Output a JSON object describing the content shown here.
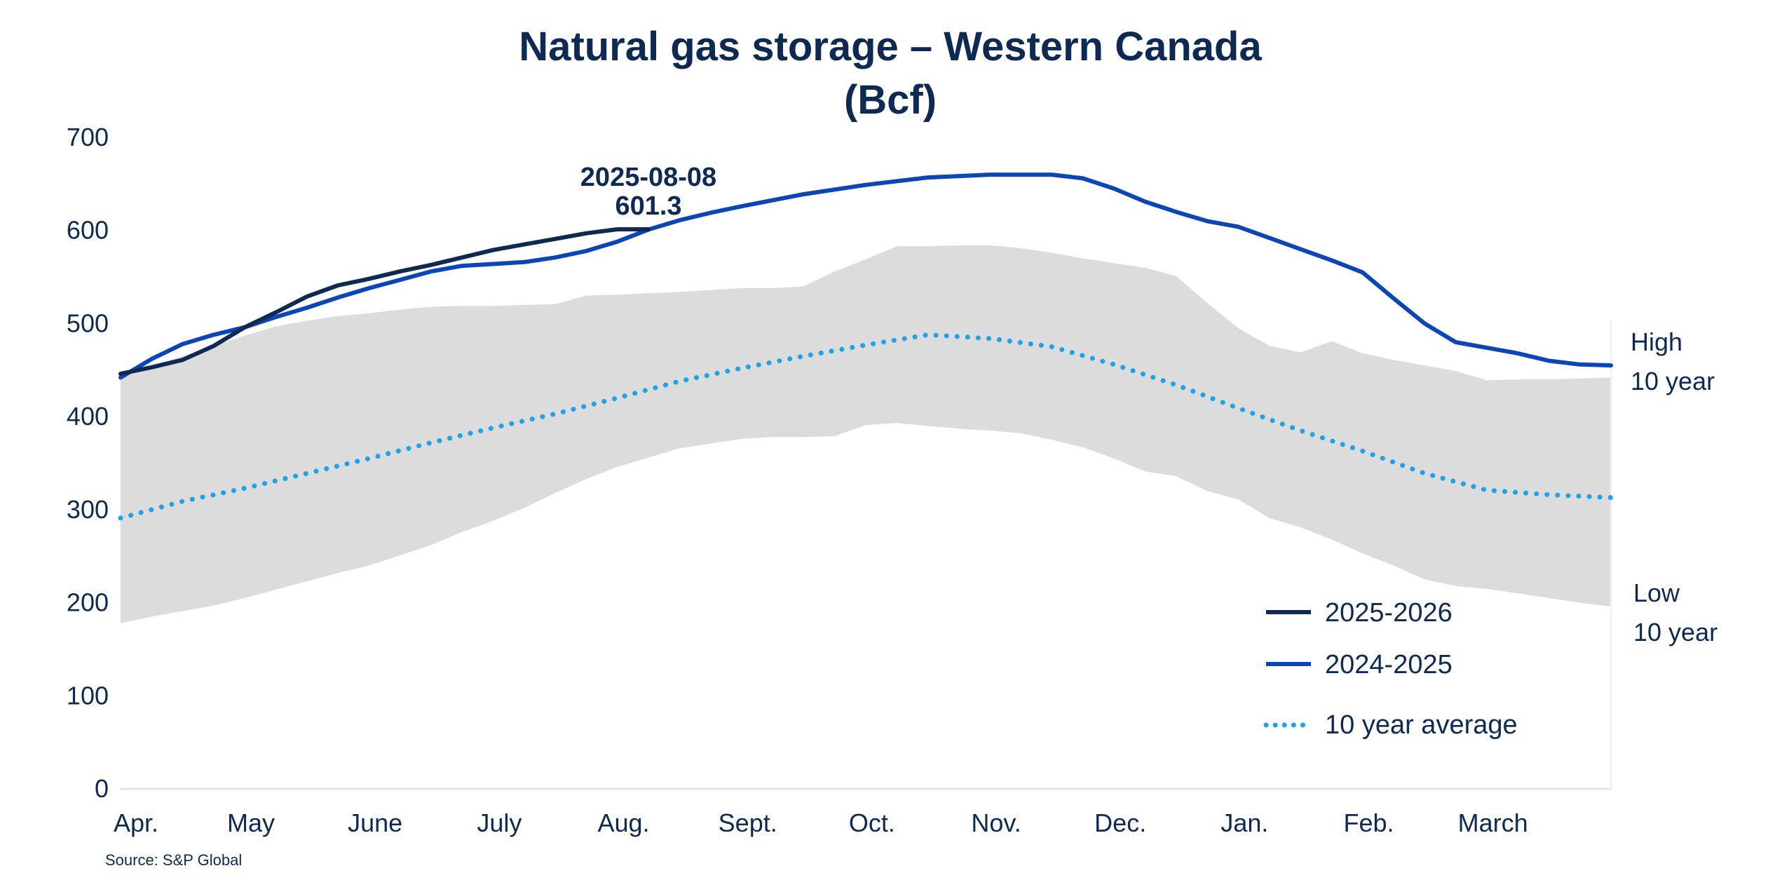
{
  "chart_data": {
    "type": "line",
    "title": "Natural gas storage – Western Canada",
    "subtitle": "(Bcf)",
    "ylim": [
      0,
      700
    ],
    "yticks": [
      0,
      100,
      200,
      300,
      400,
      500,
      600,
      700
    ],
    "xlim": [
      0,
      12
    ],
    "x_labels": [
      "Apr.",
      "May",
      "June",
      "July",
      "Aug.",
      "Sept.",
      "Oct.",
      "Nov.",
      "Dec.",
      "Jan.",
      "Feb.",
      "March"
    ],
    "grid": false,
    "legend_position": "bottom-right",
    "series": [
      {
        "name": "2025-2026",
        "color": "#0e2a52",
        "style": "solid",
        "x": [
          0,
          0.25,
          0.5,
          0.75,
          1.0,
          1.25,
          1.5,
          1.75,
          2.0,
          2.25,
          2.5,
          2.75,
          3.0,
          3.25,
          3.5,
          3.75,
          4.0,
          4.25
        ],
        "y": [
          446,
          453,
          461,
          476,
          496,
          512,
          529,
          541,
          548,
          556,
          563,
          571,
          579,
          585,
          591,
          597,
          601.3,
          601.3
        ]
      },
      {
        "name": "2024-2025",
        "color": "#0b45b8",
        "style": "solid",
        "x": [
          0,
          0.25,
          0.5,
          0.75,
          1.0,
          1.25,
          1.5,
          1.75,
          2.0,
          2.25,
          2.5,
          2.75,
          3.0,
          3.25,
          3.5,
          3.75,
          4.0,
          4.25,
          4.5,
          4.75,
          5.0,
          5.5,
          6.0,
          6.5,
          7.0,
          7.5,
          7.75,
          8.0,
          8.25,
          8.5,
          8.75,
          9.0,
          9.25,
          9.5,
          9.75,
          10.0,
          10.25,
          10.5,
          10.75,
          11.0,
          11.25,
          11.5,
          11.75,
          12.0
        ],
        "y": [
          442,
          462,
          478,
          488,
          496,
          507,
          517,
          528,
          538,
          547,
          556,
          562,
          564,
          566,
          571,
          578,
          588,
          601,
          611,
          619,
          626,
          639,
          649,
          657,
          660,
          660,
          656,
          645,
          631,
          620,
          610,
          604,
          592,
          580,
          568,
          555,
          527,
          500,
          480,
          474,
          468,
          460,
          456,
          455
        ]
      },
      {
        "name": "10 year average",
        "color": "#1ea3ea",
        "style": "dotted",
        "x": [
          0,
          0.5,
          1.0,
          1.5,
          2.0,
          2.5,
          3.0,
          3.5,
          4.0,
          4.5,
          5.0,
          5.5,
          6.0,
          6.5,
          7.0,
          7.5,
          8.0,
          8.5,
          9.0,
          9.5,
          10.0,
          10.5,
          11.0,
          11.5,
          12.0
        ],
        "y": [
          291,
          309,
          323,
          339,
          355,
          372,
          388,
          403,
          420,
          438,
          452,
          465,
          477,
          488,
          484,
          475,
          456,
          434,
          409,
          385,
          363,
          339,
          321,
          316,
          313
        ]
      }
    ],
    "band": {
      "name": "10 year range",
      "color": "#dcdcdc",
      "x": [
        0,
        0.25,
        0.5,
        0.75,
        1.0,
        1.25,
        1.5,
        1.75,
        2.0,
        2.25,
        2.5,
        2.75,
        3.0,
        3.25,
        3.5,
        3.75,
        4.0,
        4.5,
        5.0,
        5.25,
        5.5,
        5.75,
        6.0,
        6.25,
        6.5,
        6.75,
        7.0,
        7.25,
        7.5,
        7.75,
        8.0,
        8.25,
        8.5,
        8.75,
        9.0,
        9.25,
        9.5,
        9.75,
        10.0,
        10.25,
        10.5,
        10.75,
        11.0,
        11.25,
        11.5,
        11.75,
        12.0
      ],
      "high": [
        445,
        455,
        465,
        476,
        487,
        497,
        503,
        508,
        511,
        515,
        518,
        519,
        519,
        520,
        521,
        530,
        531,
        534,
        538,
        538,
        540,
        556,
        569,
        583,
        583,
        584,
        584,
        581,
        576,
        570,
        565,
        560,
        551,
        522,
        495,
        476,
        469,
        481,
        468,
        461,
        455,
        449,
        439,
        440,
        440,
        441,
        442
      ],
      "low": [
        178,
        185,
        191,
        197,
        205,
        214,
        223,
        232,
        240,
        251,
        262,
        276,
        288,
        302,
        318,
        333,
        346,
        366,
        376,
        378,
        378,
        379,
        391,
        393,
        390,
        387,
        385,
        382,
        375,
        367,
        355,
        341,
        336,
        320,
        311,
        291,
        281,
        268,
        253,
        240,
        225,
        218,
        215,
        210,
        205,
        200,
        196
      ]
    },
    "annotation": {
      "date": "2025-08-08",
      "value": "601.3",
      "x": 4.25,
      "y": 601.3
    },
    "side_labels": {
      "high_line1": "High",
      "high_line2": "10 year",
      "low_line1": "Low",
      "low_line2": "10 year"
    },
    "source": "Source: S&P Global"
  }
}
